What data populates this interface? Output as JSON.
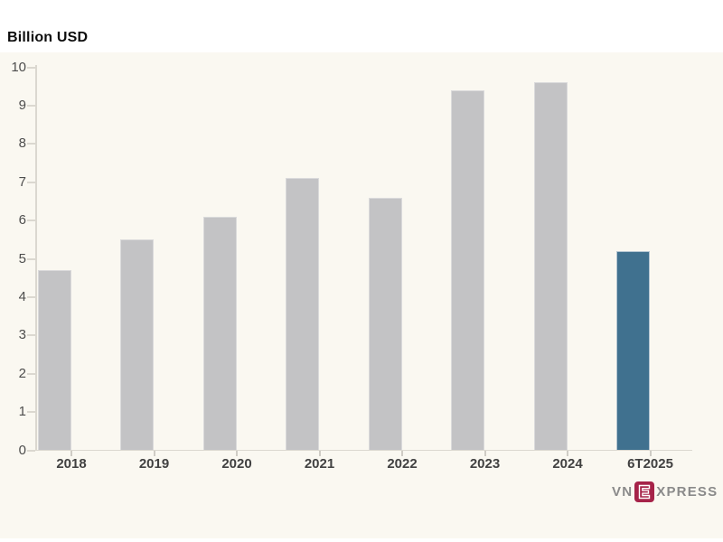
{
  "header": {
    "title": "Billion USD"
  },
  "chart_data": {
    "type": "bar",
    "title": "Billion USD",
    "ylabel": "Billion USD",
    "categories": [
      "2018",
      "2019",
      "2020",
      "2021",
      "2022",
      "2023",
      "2024",
      "6T2025"
    ],
    "values": [
      4.7,
      5.5,
      6.1,
      7.1,
      6.6,
      9.4,
      9.6,
      5.2
    ],
    "highlight_index": 7,
    "ylim": [
      0,
      10
    ],
    "yticks": [
      0,
      1,
      2,
      3,
      4,
      5,
      6,
      7,
      8,
      9,
      10
    ],
    "grid": false,
    "legend": "none",
    "colors": {
      "bar": "#c3c3c5",
      "bar_border": "#dadadb",
      "highlight": "#40718f",
      "highlight_border": "#b5c6d2",
      "axis_line": "#dbd8d0",
      "tick_mark": "#cfccc5",
      "panel_background": "#faf8f1"
    }
  },
  "branding": {
    "prefix": "VN",
    "emblem": "E",
    "suffix": "XPRESS",
    "emblem_color": "#a62349",
    "text_color": "#8a8a8a"
  }
}
